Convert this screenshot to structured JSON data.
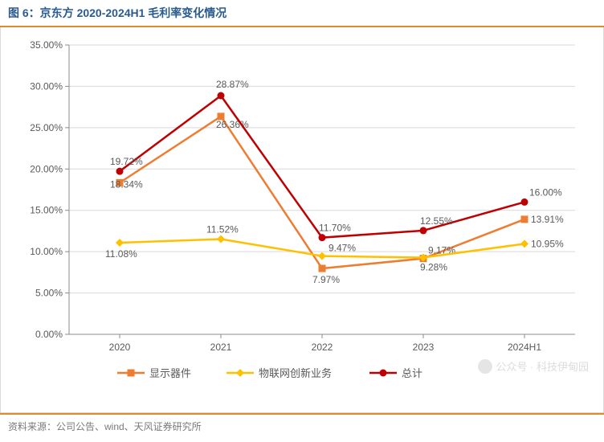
{
  "title": "图 6：京东方 2020-2024H1 毛利率变化情况",
  "source": "资料来源：公司公告、wind、天风证券研究所",
  "watermark": "公众号 · 科技伊甸园",
  "chart": {
    "type": "line",
    "categories": [
      "2020",
      "2021",
      "2022",
      "2023",
      "2024H1"
    ],
    "ylim": [
      0,
      35
    ],
    "ytick_step": 5,
    "ytick_format_suffix": ".00%",
    "background_color": "#ffffff",
    "grid_color": "#d9d9d9",
    "axis_color": "#8c8c8c",
    "label_fontsize": 12,
    "plot_border": true,
    "series": [
      {
        "name": "显示器件",
        "color": "#ed7d31",
        "marker": "square",
        "marker_size": 9,
        "line_width": 2.5,
        "values": [
          18.34,
          26.36,
          7.97,
          9.17,
          13.91
        ],
        "value_labels": [
          "18.34%",
          "26.36%",
          "7.97%",
          "9.17%",
          "13.91%"
        ],
        "label_dy": [
          6,
          14,
          18,
          -6,
          4
        ],
        "label_dx": [
          -12,
          -6,
          -12,
          6,
          8
        ]
      },
      {
        "name": "物联网创新业务",
        "color": "#ffc000",
        "marker": "diamond",
        "marker_size": 10,
        "line_width": 2.5,
        "values": [
          11.08,
          11.52,
          9.47,
          9.28,
          10.95
        ],
        "value_labels": [
          "11.08%",
          "11.52%",
          "9.47%",
          "9.28%",
          "10.95%"
        ],
        "label_dy": [
          18,
          -8,
          -6,
          16,
          4
        ],
        "label_dx": [
          -18,
          -18,
          8,
          -4,
          8
        ]
      },
      {
        "name": "总计",
        "color": "#c00000",
        "marker": "circle",
        "marker_size": 9,
        "line_width": 2.5,
        "values": [
          19.72,
          28.87,
          11.7,
          12.55,
          16.0
        ],
        "value_labels": [
          "19.72%",
          "28.87%",
          "11.70%",
          "12.55%",
          "16.00%"
        ],
        "label_dy": [
          -8,
          -10,
          -8,
          -8,
          -8
        ],
        "label_dx": [
          -12,
          -6,
          -4,
          -4,
          6
        ]
      }
    ],
    "legend": {
      "position": "bottom",
      "items": [
        "显示器件",
        "物联网创新业务",
        "总计"
      ]
    }
  }
}
